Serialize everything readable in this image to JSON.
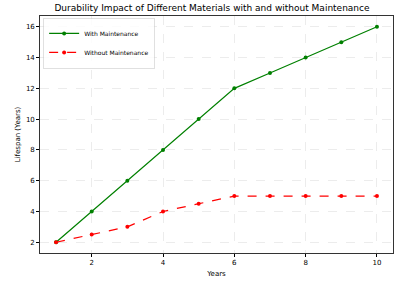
{
  "chart_data": {
    "type": "line",
    "title": "Durability Impact of Different Materials with and without Maintenance",
    "x_label": "Years",
    "y_label": "Lifespan (Years)",
    "x": [
      1,
      2,
      3,
      4,
      5,
      6,
      7,
      8,
      9,
      10
    ],
    "series": [
      {
        "name": "With Maintenance",
        "color": "#008000",
        "marker": "o",
        "line_style": "solid",
        "values": [
          2,
          4,
          6,
          8,
          10,
          12,
          13,
          14,
          15,
          16
        ]
      },
      {
        "name": "Without Maintenance",
        "color": "#ff0000",
        "marker": "o",
        "line_style": "dashed",
        "values": [
          2,
          2.5,
          3,
          4,
          4.5,
          5,
          5,
          5,
          5,
          5
        ]
      }
    ],
    "xlim": [
      0.55,
      10.45
    ],
    "xticks": [
      2,
      4,
      6,
      8,
      10
    ],
    "ylim": [
      1.3,
      16.7
    ],
    "yticks": [
      2,
      4,
      6,
      8,
      10,
      12,
      14,
      16
    ],
    "grid": true,
    "legend": "upper left"
  }
}
